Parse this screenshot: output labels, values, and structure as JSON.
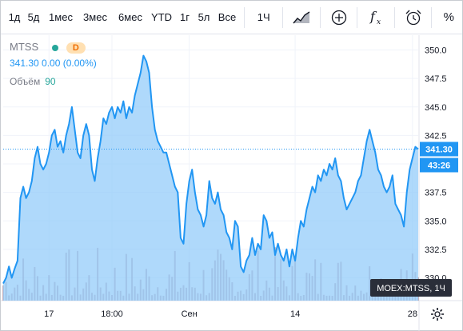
{
  "toolbar": {
    "periods": [
      "1д",
      "5д",
      "1мес",
      "3мес",
      "6мес",
      "YTD",
      "1г",
      "5л",
      "Все"
    ],
    "interval": "1Ч",
    "percent_label": "%"
  },
  "legend": {
    "symbol": "MTSS",
    "badge": "D",
    "values_line": "341.30  0.00 (0.00%)",
    "volume_label": "Объём",
    "volume_value": "90"
  },
  "price_tag": {
    "price": "341.30",
    "countdown": "43:26"
  },
  "symbol_tooltip": "MOEX:MTSS, 1Ч",
  "colors": {
    "line": "#2196f3",
    "area": "#90caf9",
    "volume": "#b59aa8",
    "accent": "#2196f3"
  },
  "chart_data": {
    "type": "area",
    "title": "",
    "xlabel": "",
    "ylabel": "",
    "ylim": [
      328.0,
      351.3
    ],
    "yticks": [
      330.0,
      332.5,
      335.0,
      337.5,
      340.0,
      342.5,
      345.0,
      347.5,
      350.0
    ],
    "ytick_labels": [
      "330.0",
      "332.5",
      "335.0",
      "337.5",
      "340.0",
      "342.5",
      "345.0",
      "347.5",
      "350.0"
    ],
    "xticks": [
      {
        "label": "17",
        "i": 16
      },
      {
        "label": "18:00",
        "i": 38
      },
      {
        "label": "Сен",
        "i": 65
      },
      {
        "label": "14",
        "i": 102
      },
      {
        "label": "28",
        "i": 143
      }
    ],
    "n_points": 146,
    "series": [
      {
        "values": [
          329.5,
          330.0,
          331.0,
          330.0,
          330.8,
          331.5,
          337.0,
          338.0,
          337.0,
          337.5,
          338.5,
          340.5,
          341.5,
          340.0,
          339.5,
          340.0,
          341.0,
          342.5,
          343.0,
          341.5,
          342.0,
          341.0,
          342.5,
          343.5,
          345.0,
          343.0,
          341.0,
          340.5,
          342.5,
          343.5,
          342.5,
          339.5,
          338.5,
          340.5,
          342.0,
          344.0,
          343.5,
          344.5,
          345.0,
          344.0,
          345.0,
          344.5,
          345.5,
          344.0,
          345.0,
          344.5,
          346.0,
          347.0,
          348.0,
          349.5,
          349.0,
          348.0,
          345.0,
          343.0,
          342.0,
          341.5,
          341.0,
          341.0,
          340.0,
          339.0,
          338.0,
          337.5,
          333.5,
          333.0,
          336.5,
          338.5,
          339.5,
          337.5,
          336.0,
          335.5,
          334.5,
          335.5,
          338.5,
          337.0,
          336.5,
          337.5,
          336.0,
          335.5,
          334.0,
          333.5,
          332.5,
          335.0,
          334.5,
          331.0,
          330.5,
          331.5,
          332.0,
          333.5,
          332.0,
          333.0,
          332.5,
          335.5,
          335.0,
          333.5,
          334.0,
          332.0,
          333.0,
          332.0,
          331.5,
          332.5,
          331.0,
          332.5,
          331.5,
          333.5,
          335.0,
          334.5,
          336.0,
          337.0,
          338.0,
          337.5,
          339.0,
          338.5,
          339.5,
          339.0,
          340.0,
          339.5,
          340.5,
          339.0,
          338.5,
          337.0,
          336.0,
          336.5,
          337.0,
          337.5,
          338.5,
          339.0,
          340.5,
          342.0,
          343.0,
          342.0,
          341.0,
          339.5,
          339.0,
          338.0,
          337.5,
          338.0,
          339.0,
          336.5,
          336.0,
          335.5,
          334.5,
          337.5,
          339.5,
          340.5,
          341.5,
          341.3
        ]
      }
    ],
    "grid": true,
    "legend_placement": "top-left"
  }
}
